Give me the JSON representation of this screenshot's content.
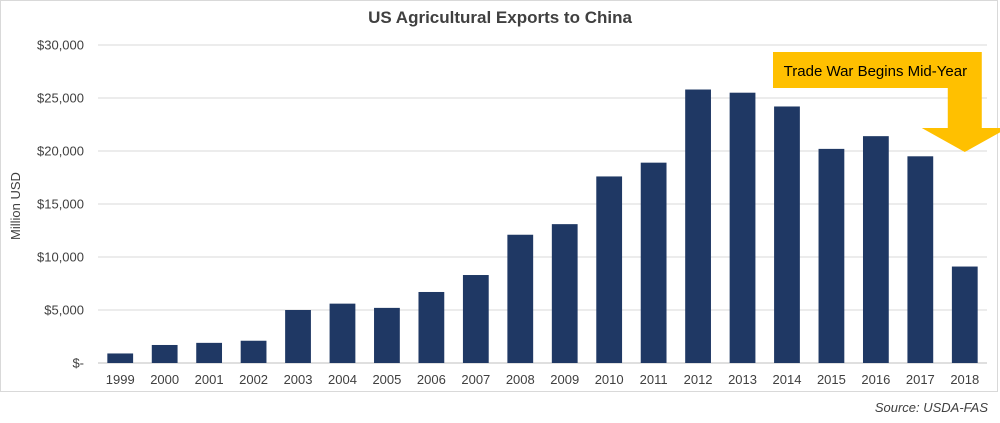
{
  "chart_data": {
    "type": "bar",
    "title": "US Agricultural Exports to China",
    "ylabel": "Million USD",
    "xlabel": "",
    "categories": [
      "1999",
      "2000",
      "2001",
      "2002",
      "2003",
      "2004",
      "2005",
      "2006",
      "2007",
      "2008",
      "2009",
      "2010",
      "2011",
      "2012",
      "2013",
      "2014",
      "2015",
      "2016",
      "2017",
      "2018"
    ],
    "values": [
      900,
      1700,
      1900,
      2100,
      5000,
      5600,
      5200,
      6700,
      8300,
      12100,
      13100,
      17600,
      18900,
      25800,
      25500,
      24200,
      20200,
      21400,
      19500,
      9100
    ],
    "ylim": [
      0,
      30000
    ],
    "yticks": [
      0,
      5000,
      10000,
      15000,
      20000,
      25000,
      30000
    ],
    "ytick_labels": [
      "$-",
      "$5,000",
      "$10,000",
      "$15,000",
      "$20,000",
      "$25,000",
      "$30,000"
    ],
    "grid": true,
    "bar_color": "#1f3864",
    "annotation": {
      "text": "Trade War Begins Mid-Year",
      "target_category": "2018",
      "color": "#ffc000"
    }
  },
  "source": "Source: USDA-FAS"
}
